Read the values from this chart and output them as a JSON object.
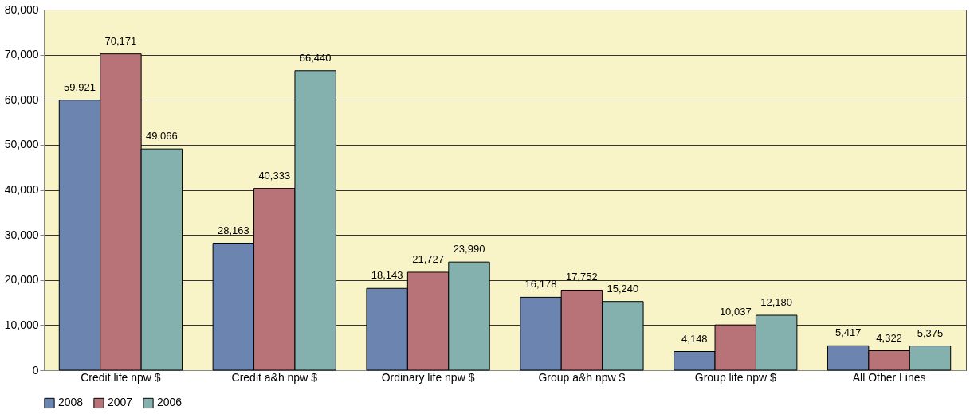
{
  "chart_data": {
    "type": "bar",
    "categories": [
      "Credit life npw $",
      "Credit a&h npw $",
      "Ordinary life npw $",
      "Group a&h npw $",
      "Group life npw $",
      "All Other Lines"
    ],
    "series": [
      {
        "name": "2008",
        "color": "#6b84b0",
        "values": [
          59921,
          28163,
          18143,
          16178,
          4148,
          5417
        ],
        "value_labels": [
          "59,921",
          "28,163",
          "18,143",
          "16,178",
          "4,148",
          "5,417"
        ]
      },
      {
        "name": "2007",
        "color": "#b87378",
        "values": [
          70171,
          40333,
          21727,
          17752,
          10037,
          4322
        ],
        "value_labels": [
          "70,171",
          "40,333",
          "21,727",
          "17,752",
          "10,037",
          "4,322"
        ]
      },
      {
        "name": "2006",
        "color": "#84b0ae",
        "values": [
          49066,
          66440,
          23990,
          15240,
          12180,
          5375
        ],
        "value_labels": [
          "49,066",
          "66,440",
          "23,990",
          "15,240",
          "12,180",
          "5,375"
        ]
      }
    ],
    "ylim": [
      0,
      80000
    ],
    "yticks": [
      0,
      {
        "value": 10000,
        "label": "10,000"
      },
      {
        "value": 20000,
        "label": "20,000"
      },
      {
        "value": 30000,
        "label": "30,000"
      },
      {
        "value": 40000,
        "label": "40,000"
      },
      {
        "value": 50000,
        "label": "50,000"
      },
      {
        "value": 60000,
        "label": "60,000"
      },
      {
        "value": 70000,
        "label": "70,000"
      },
      {
        "value": 80000,
        "label": "80,000"
      }
    ],
    "grid": "y",
    "legend": "bottom"
  }
}
